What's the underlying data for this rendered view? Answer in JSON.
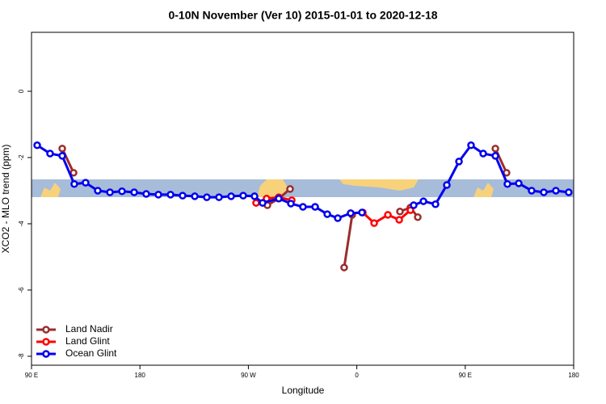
{
  "chart_data": {
    "type": "line",
    "title": "0-10N November (Ver 10)   2015-01-01 to 2020-12-18",
    "x_label": "Longitude",
    "y_label": "XCO2 - MLO trend (ppm)",
    "xlim": [
      90,
      540
    ],
    "ylim": [
      -8.27,
      1.78
    ],
    "xticks": [
      {
        "value": 90,
        "label": "90 E"
      },
      {
        "value": 180,
        "label": "180"
      },
      {
        "value": 270,
        "label": "90 W"
      },
      {
        "value": 360,
        "label": "0"
      },
      {
        "value": 450,
        "label": "90 E"
      },
      {
        "value": 540,
        "label": "180"
      }
    ],
    "yticks": [
      0,
      -2,
      -4,
      -6,
      -8
    ],
    "legend": "bottom-left",
    "series": [
      {
        "name": "Land Nadir",
        "color": "#9b2d2d",
        "x": [
          115.5,
          124.9,
          null,
          285.8,
          295.2,
          304.6,
          null,
          349.5,
          356.2,
          null,
          395.8,
          404.5,
          410.6,
          null,
          475.0,
          484.3
        ],
        "values": [
          -1.73,
          -2.46,
          null,
          -3.44,
          -3.24,
          -2.95,
          null,
          -5.32,
          -3.73,
          null,
          -3.63,
          -3.51,
          -3.8,
          null,
          -1.73,
          -2.46
        ]
      },
      {
        "name": "Land Glint",
        "color": "#ff0000",
        "x": [
          276.4,
          285.1,
          295.2,
          306.0,
          null,
          354.9,
          365.0,
          374.4,
          385.8,
          395.2,
          404.5
        ],
        "values": [
          -3.37,
          -3.24,
          -3.2,
          -3.29,
          null,
          -3.68,
          -3.66,
          -3.98,
          -3.73,
          -3.88,
          -3.59
        ]
      },
      {
        "name": "Ocean Glint",
        "color": "#0000ee",
        "x": [
          94.7,
          105.4,
          115.5,
          125.5,
          134.9,
          145.0,
          155.1,
          165.1,
          175.2,
          185.2,
          195.3,
          205.4,
          215.4,
          225.5,
          235.5,
          245.6,
          255.7,
          265.7,
          275.1,
          281.8,
          295.2,
          305.3,
          315.3,
          325.4,
          335.5,
          344.2,
          354.9,
          364.3,
          null,
          407.2,
          415.3,
          425.3,
          434.7,
          444.8,
          454.8,
          464.9,
          475.0,
          485.0,
          494.4,
          505.1,
          515.2,
          525.2,
          535.9
        ],
        "values": [
          -1.63,
          -1.88,
          -1.95,
          -2.8,
          -2.76,
          -3.0,
          -3.05,
          -3.02,
          -3.05,
          -3.1,
          -3.12,
          -3.12,
          -3.15,
          -3.17,
          -3.2,
          -3.2,
          -3.17,
          -3.15,
          -3.17,
          -3.37,
          -3.24,
          -3.39,
          -3.49,
          -3.49,
          -3.71,
          -3.83,
          -3.68,
          -3.66,
          null,
          -3.44,
          -3.32,
          -3.41,
          -2.83,
          -2.12,
          -1.63,
          -1.88,
          -1.95,
          -2.8,
          -2.78,
          -3.0,
          -3.05,
          -3.0,
          -3.05
        ]
      }
    ]
  }
}
